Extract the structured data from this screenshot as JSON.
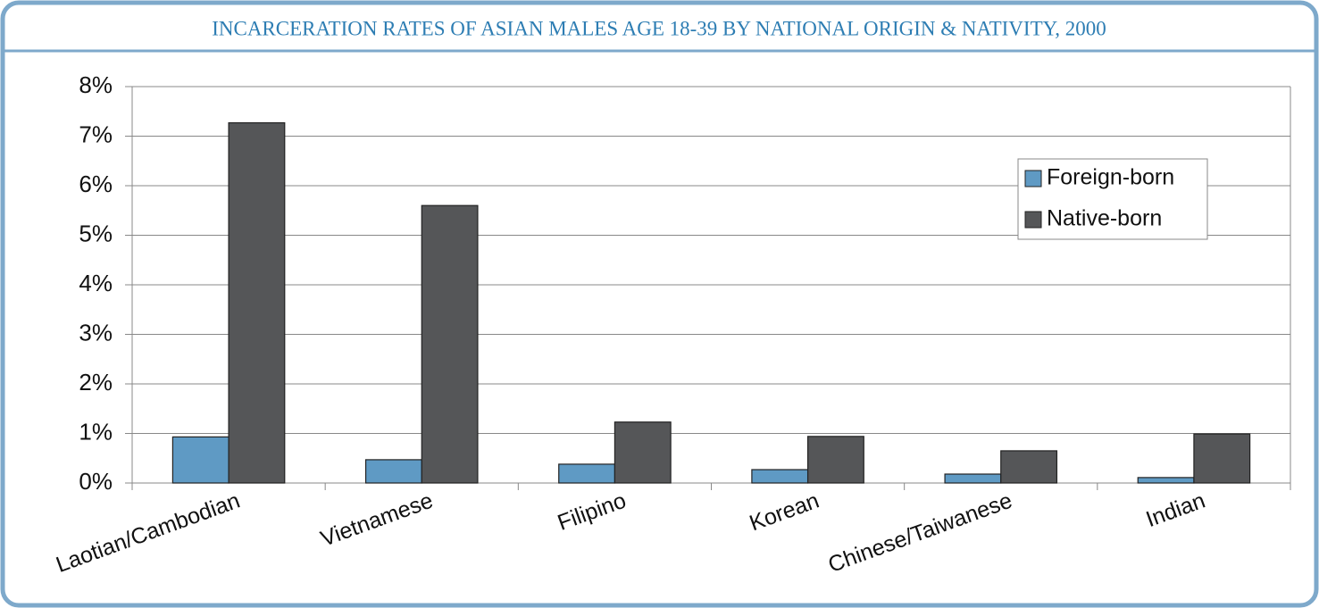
{
  "chart_data": {
    "type": "bar",
    "title": "INCARCERATION RATES OF ASIAN MALES AGE 18-39 BY NATIONAL ORIGIN & NATIVITY, 2000",
    "categories": [
      "Laotian/Cambodian",
      "Vietnamese",
      "Filipino",
      "Korean",
      "Chinese/Taiwanese",
      "Indian"
    ],
    "series": [
      {
        "name": "Foreign-born",
        "color": "#5f9ac4",
        "values": [
          0.93,
          0.47,
          0.38,
          0.27,
          0.18,
          0.11
        ]
      },
      {
        "name": "Native-born",
        "color": "#555658",
        "values": [
          7.27,
          5.6,
          1.23,
          0.94,
          0.65,
          0.99
        ]
      }
    ],
    "ylim": [
      0,
      8
    ],
    "yticks": [
      {
        "value": 0,
        "label": "0%"
      },
      {
        "value": 1,
        "label": "1%"
      },
      {
        "value": 2,
        "label": "2%"
      },
      {
        "value": 3,
        "label": "3%"
      },
      {
        "value": 4,
        "label": "4%"
      },
      {
        "value": 5,
        "label": "5%"
      },
      {
        "value": 6,
        "label": "6%"
      },
      {
        "value": 7,
        "label": "7%"
      },
      {
        "value": 8,
        "label": "8%"
      }
    ],
    "grid": true,
    "legend": "upper-right"
  }
}
